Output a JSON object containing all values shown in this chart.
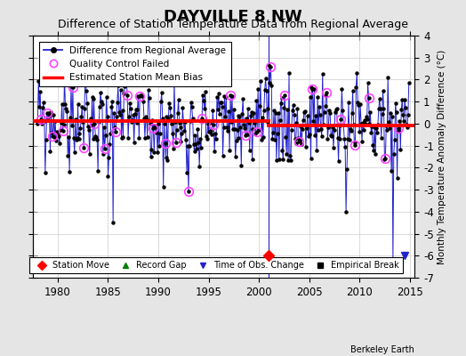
{
  "title": "DAYVILLE 8 NW",
  "subtitle": "Difference of Station Temperature Data from Regional Average",
  "ylabel": "Monthly Temperature Anomaly Difference (°C)",
  "xlabel_ticks": [
    1980,
    1985,
    1990,
    1995,
    2000,
    2005,
    2010,
    2015
  ],
  "yticks": [
    -7,
    -6,
    -5,
    -4,
    -3,
    -2,
    -1,
    0,
    1,
    2,
    3,
    4
  ],
  "xlim": [
    1977.5,
    2015.5
  ],
  "ylim": [
    -7,
    4
  ],
  "bias_y_early": 0.12,
  "bias_y_late": -0.08,
  "bias_split_x": 2001.0,
  "vertical_line_x": 2001.0,
  "station_move_x": 2001.0,
  "station_move_y": -6.0,
  "time_obs_change_x": 2014.5,
  "time_obs_change_y": -6.0,
  "background_color": "#e5e5e5",
  "plot_bg_color": "#ffffff",
  "line_color": "#2222cc",
  "dot_color": "#000000",
  "bias_color": "#ff0000",
  "qc_color": "#ff44ff",
  "grid_color": "#cccccc",
  "title_fontsize": 13,
  "subtitle_fontsize": 9,
  "watermark": "Berkeley Earth",
  "years_start": 1978.0,
  "years_end": 2015.0
}
